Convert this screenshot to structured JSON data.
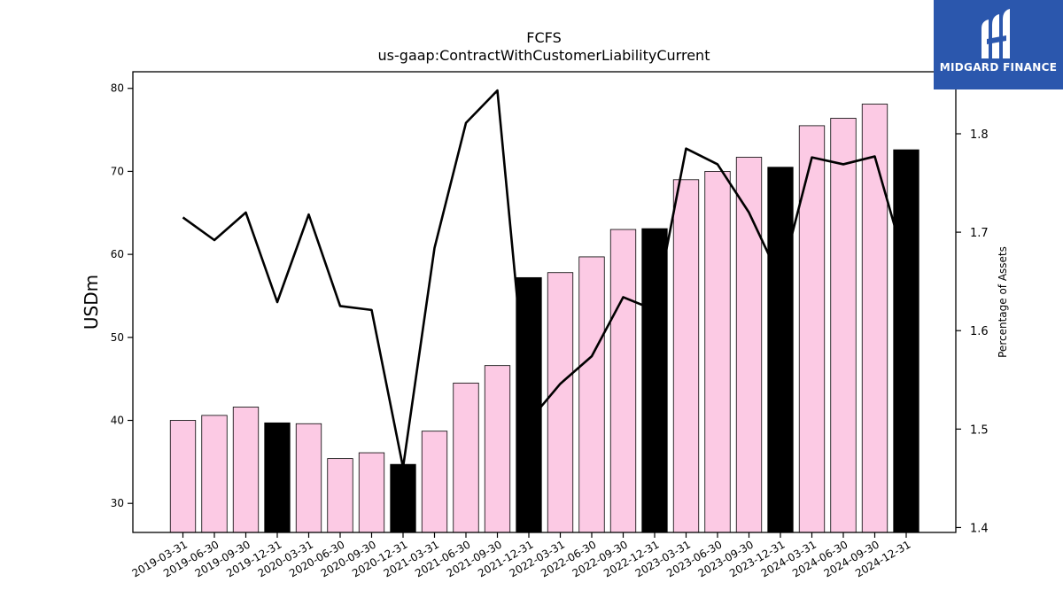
{
  "chart_data": {
    "type": "bar",
    "title": "FCFS",
    "subtitle": "us-gaap:ContractWithCustomerLiabilityCurrent",
    "ylabel": "USDm",
    "y2label": "Percentage of Assets",
    "ylim": [
      26.5,
      82
    ],
    "y2lim": [
      1.395,
      1.863
    ],
    "yticks": [
      30,
      40,
      50,
      60,
      70,
      80
    ],
    "y2ticks": [
      1.4,
      1.5,
      1.6,
      1.7,
      1.8
    ],
    "categories": [
      "2019-03-31",
      "2019-06-30",
      "2019-09-30",
      "2019-12-31",
      "2020-03-31",
      "2020-06-30",
      "2020-09-30",
      "2020-12-31",
      "2021-03-31",
      "2021-06-30",
      "2021-09-30",
      "2021-12-31",
      "2022-03-31",
      "2022-06-30",
      "2022-09-30",
      "2022-12-31",
      "2023-03-31",
      "2023-06-30",
      "2023-09-30",
      "2023-12-31",
      "2024-03-31",
      "2024-06-30",
      "2024-09-30",
      "2024-12-31"
    ],
    "series": [
      {
        "type": "bar",
        "values": [
          40.0,
          40.6,
          41.6,
          39.7,
          39.6,
          35.4,
          36.1,
          34.7,
          38.7,
          44.5,
          46.6,
          57.2,
          57.8,
          59.7,
          63.0,
          63.1,
          69.0,
          70.0,
          71.7,
          70.5,
          75.5,
          76.4,
          78.1,
          72.6
        ],
        "year_end": [
          false,
          false,
          false,
          true,
          false,
          false,
          false,
          true,
          false,
          false,
          false,
          true,
          false,
          false,
          false,
          true,
          false,
          false,
          false,
          true,
          false,
          false,
          false,
          true
        ]
      },
      {
        "type": "line",
        "values": [
          1.715,
          1.692,
          1.72,
          1.629,
          1.718,
          1.625,
          1.621,
          1.461,
          1.684,
          1.811,
          1.844,
          1.508,
          1.546,
          1.574,
          1.634,
          1.621,
          1.785,
          1.769,
          1.72,
          1.652,
          1.776,
          1.769,
          1.777,
          1.665
        ]
      }
    ],
    "colors": {
      "bar": "#fccae4",
      "bar_year_end": "#000000",
      "line": "#000000",
      "edge": "#000000"
    }
  },
  "logo": {
    "text": "MIDGARD FINANCE",
    "background": "#2b57ad"
  }
}
